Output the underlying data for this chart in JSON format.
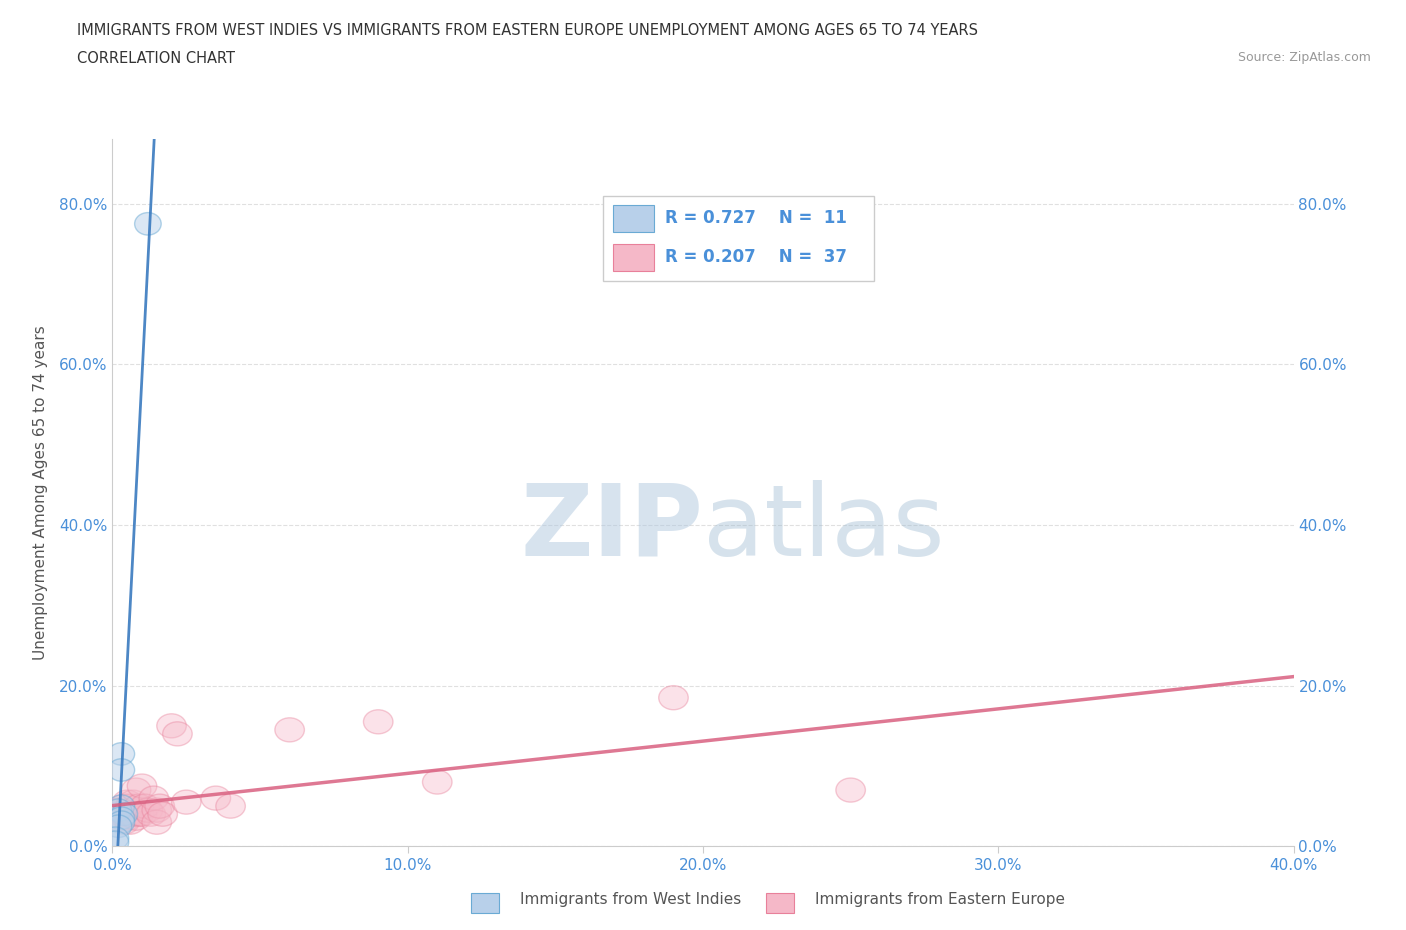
{
  "title_line1": "IMMIGRANTS FROM WEST INDIES VS IMMIGRANTS FROM EASTERN EUROPE UNEMPLOYMENT AMONG AGES 65 TO 74 YEARS",
  "title_line2": "CORRELATION CHART",
  "source": "Source: ZipAtlas.com",
  "ylabel": "Unemployment Among Ages 65 to 74 years",
  "xlim": [
    0.0,
    0.4
  ],
  "ylim": [
    0.0,
    0.88
  ],
  "xticks": [
    0.0,
    0.1,
    0.2,
    0.3,
    0.4
  ],
  "yticks": [
    0.0,
    0.2,
    0.4,
    0.6,
    0.8
  ],
  "xticklabels": [
    "0.0%",
    "10.0%",
    "20.0%",
    "30.0%",
    "40.0%"
  ],
  "yticklabels": [
    "0.0%",
    "20.0%",
    "40.0%",
    "60.0%",
    "80.0%"
  ],
  "legend_r1": "R = 0.727",
  "legend_n1": "N =  11",
  "legend_r2": "R = 0.207",
  "legend_n2": "N =  37",
  "color_west_indies_fill": "#b8d0ea",
  "color_west_indies_edge": "#6aaad4",
  "color_eastern_europe_fill": "#f5b8c8",
  "color_eastern_europe_edge": "#e8809a",
  "color_line_west_indies": "#3a7abf",
  "color_line_eastern_europe": "#d96080",
  "watermark_color": "#c8d8e8",
  "west_indies_x": [
    0.012,
    0.003,
    0.003,
    0.003,
    0.002,
    0.004,
    0.003,
    0.003,
    0.002,
    0.001,
    0.001
  ],
  "west_indies_y": [
    0.775,
    0.115,
    0.095,
    0.05,
    0.045,
    0.04,
    0.035,
    0.03,
    0.025,
    0.01,
    0.005
  ],
  "eastern_europe_x": [
    0.002,
    0.003,
    0.003,
    0.004,
    0.004,
    0.005,
    0.005,
    0.005,
    0.006,
    0.006,
    0.006,
    0.007,
    0.007,
    0.008,
    0.008,
    0.009,
    0.009,
    0.01,
    0.01,
    0.011,
    0.012,
    0.013,
    0.014,
    0.015,
    0.015,
    0.016,
    0.017,
    0.02,
    0.022,
    0.025,
    0.035,
    0.04,
    0.06,
    0.09,
    0.11,
    0.19,
    0.25
  ],
  "eastern_europe_y": [
    0.045,
    0.04,
    0.035,
    0.05,
    0.03,
    0.055,
    0.04,
    0.035,
    0.05,
    0.04,
    0.03,
    0.055,
    0.04,
    0.07,
    0.035,
    0.05,
    0.04,
    0.075,
    0.04,
    0.05,
    0.045,
    0.04,
    0.06,
    0.045,
    0.03,
    0.05,
    0.04,
    0.15,
    0.14,
    0.055,
    0.06,
    0.05,
    0.145,
    0.155,
    0.08,
    0.185,
    0.07
  ],
  "background_color": "#ffffff",
  "grid_color": "#e0e0e0"
}
